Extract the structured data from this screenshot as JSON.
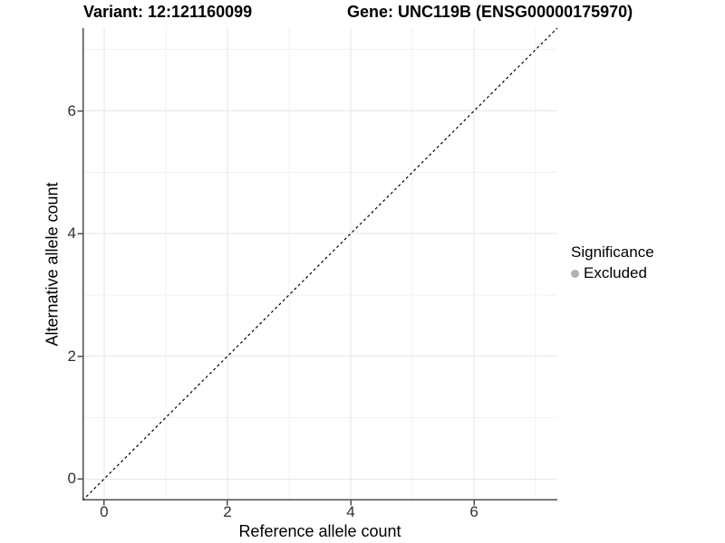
{
  "chart_data": {
    "type": "scatter",
    "title_left": "Variant: 12:121160099",
    "title_right": "Gene: UNC119B (ENSG00000175970)",
    "xlabel": "Reference allele count",
    "ylabel": "Alternative allele count",
    "xlim": [
      -0.35,
      7.35
    ],
    "ylim": [
      -0.35,
      7.35
    ],
    "x_major_ticks": [
      0,
      2,
      4,
      6
    ],
    "y_major_ticks": [
      0,
      2,
      4,
      6
    ],
    "x_minor_gridlines": [
      1,
      3,
      5,
      7
    ],
    "y_minor_gridlines": [
      1,
      3,
      5,
      7
    ],
    "grid": "major+minor",
    "points": [],
    "reference_line": {
      "type": "identity",
      "slope": 1,
      "intercept": 0,
      "linetype": "dashed",
      "color": "#000000"
    },
    "legend": {
      "position": "right",
      "title": "Significance",
      "items": [
        {
          "label": "Excluded",
          "color": "#b0b0b0",
          "marker": "circle"
        }
      ]
    }
  },
  "colors": {
    "background": "#ffffff",
    "grid_major": "#e6e6e6",
    "grid_minor": "#f2f2f2",
    "axis_line": "#4d4d4d",
    "tick_label": "#303030",
    "text": "#000000",
    "excluded_point": "#b0b0b0"
  }
}
